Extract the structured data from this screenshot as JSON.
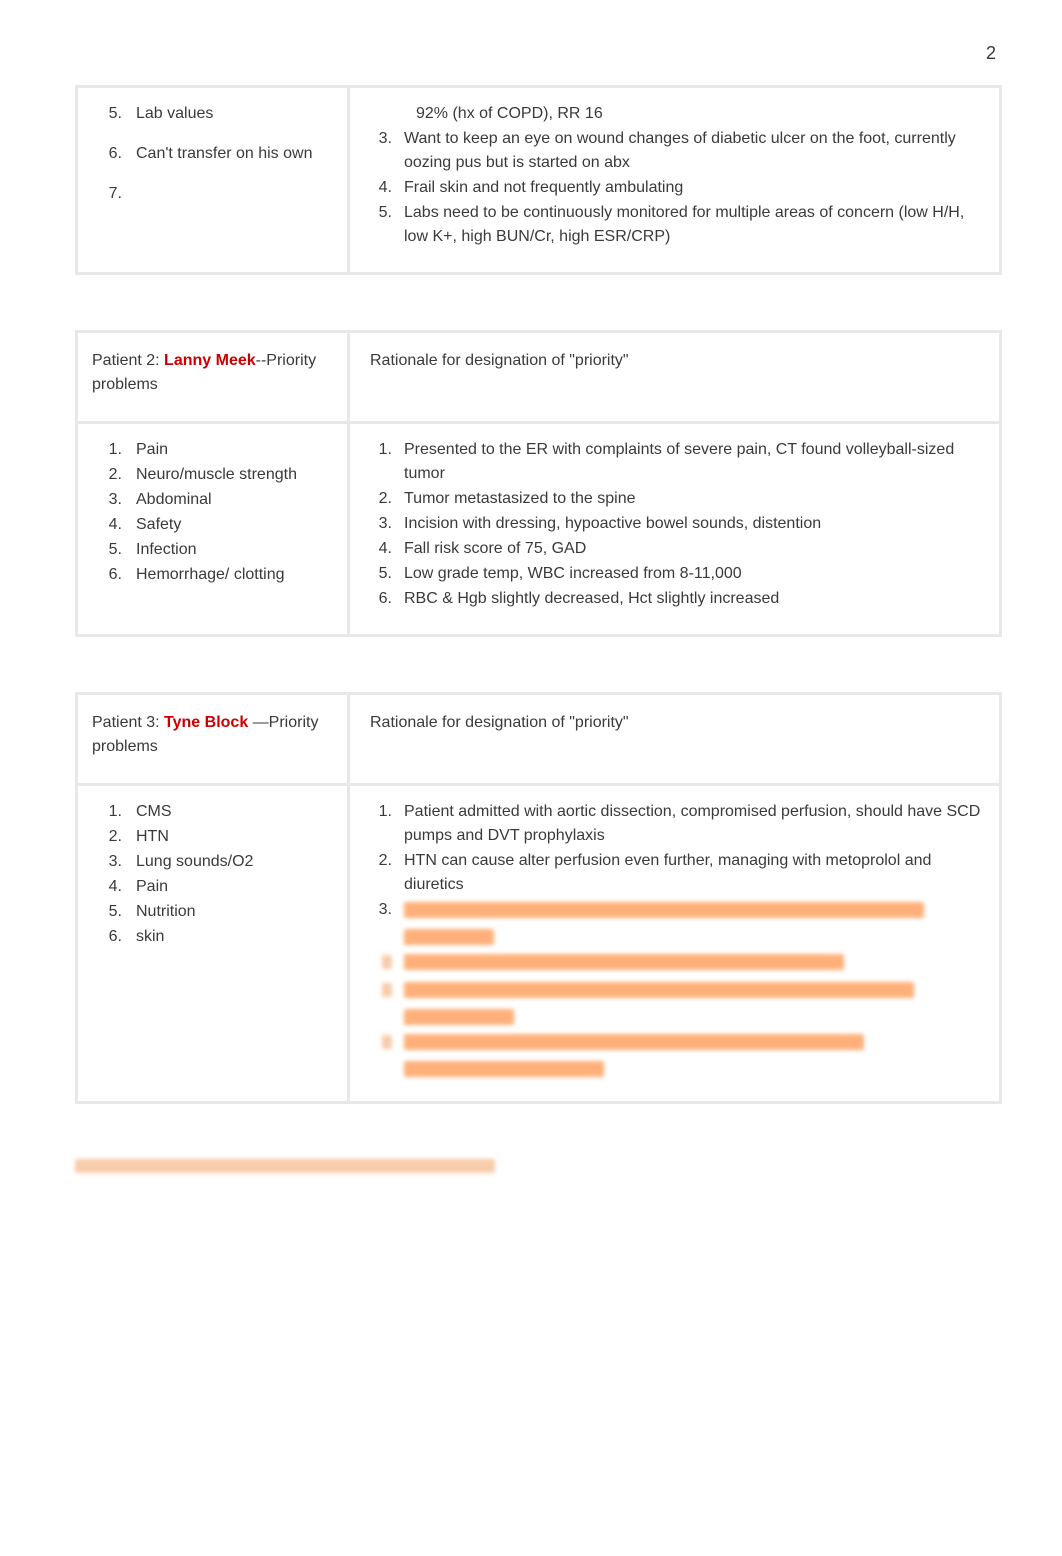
{
  "page": {
    "number": "2"
  },
  "panel1": {
    "left_start_index": 5,
    "left_items": [
      "Lab values",
      "Can't transfer on his own",
      ""
    ],
    "right_lead": "92% (hx of COPD), RR 16",
    "right_start_index": 3,
    "right_items": [
      "Want to keep an eye on wound changes of diabetic ulcer on the foot, currently oozing pus but is started on abx",
      "Frail skin and not frequently ambulating",
      "Labs need to be continuously monitored for multiple areas of concern (low H/H, low K+, high BUN/Cr, high ESR/CRP)"
    ]
  },
  "panel2": {
    "header_left_prefix": "Patient 2: ",
    "header_left_name": "Lanny Meek",
    "header_left_suffix": "--Priority problems",
    "header_right": "Rationale for designation of \"priority\"",
    "left_items": [
      "Pain",
      "Neuro/muscle strength",
      "Abdominal",
      "Safety",
      "Infection",
      "Hemorrhage/ clotting"
    ],
    "right_items": [
      "Presented to the ER with complaints of severe pain, CT found volleyball-sized tumor",
      "Tumor metastasized to the spine",
      "Incision with dressing, hypoactive bowel sounds, distention",
      "Fall risk score of 75, GAD",
      "Low grade temp, WBC increased from 8-11,000",
      "RBC & Hgb slightly decreased, Hct slightly increased"
    ]
  },
  "panel3": {
    "header_left_prefix": "Patient 3: ",
    "header_left_name": "Tyne Block",
    "header_left_suffix": "  —Priority problems",
    "header_right": "Rationale for designation of \"priority\"",
    "left_items": [
      "CMS",
      "HTN",
      "Lung sounds/O2",
      "Pain",
      "Nutrition",
      "skin"
    ],
    "right_items_visible": [
      "Patient admitted with aortic dissection, compromised perfusion, should have SCD pumps and DVT prophylaxis",
      "HTN can cause alter perfusion even further, managing with metoprolol and diuretics"
    ],
    "right_redacted_indices": [
      3,
      4,
      5,
      6
    ]
  },
  "redaction_colors": {
    "orange": "#ffb07a",
    "pale": "#f7ccaa"
  }
}
